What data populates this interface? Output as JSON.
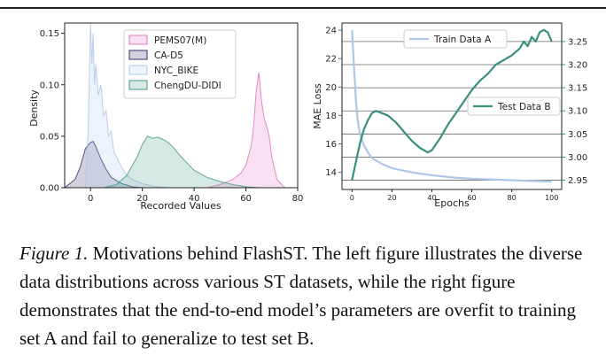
{
  "caption": {
    "label": "Figure 1.",
    "text": "Motivations behind FlashST. The left figure illustrates the diverse data distributions across various ST datasets, while the right figure demonstrates that the end-to-end model’s parameters are overfit to training set A and fail to generalize to test set B."
  },
  "chart_data": [
    {
      "type": "area",
      "title": "",
      "xlabel": "Recorded Values",
      "ylabel": "Density",
      "xlim": [
        -10,
        80
      ],
      "ylim": [
        0,
        0.16
      ],
      "xticks": [
        "0",
        "20",
        "40",
        "60",
        "80"
      ],
      "yticks": [
        "0.00",
        "0.05",
        "0.10",
        "0.15"
      ],
      "legend_position": "top-center",
      "series": [
        {
          "name": "PEMS07(M)",
          "color": "#e377c2",
          "x": [
            45,
            50,
            55,
            58,
            60,
            62,
            63,
            64,
            65,
            66,
            67,
            68,
            69,
            70,
            72,
            75
          ],
          "values": [
            0.0,
            0.003,
            0.008,
            0.014,
            0.022,
            0.04,
            0.06,
            0.095,
            0.112,
            0.085,
            0.068,
            0.06,
            0.05,
            0.03,
            0.008,
            0.0
          ]
        },
        {
          "name": "CA-D5",
          "color": "#34316e",
          "x": [
            -10,
            -6,
            -4,
            -2,
            0,
            1,
            2,
            4,
            6,
            8,
            12,
            16,
            20
          ],
          "values": [
            0.0,
            0.008,
            0.02,
            0.038,
            0.044,
            0.045,
            0.04,
            0.028,
            0.018,
            0.01,
            0.004,
            0.001,
            0.0
          ]
        },
        {
          "name": "NYC_BIKE",
          "color": "#aec7e8",
          "x": [
            -2,
            -1,
            0,
            0.5,
            1,
            1.5,
            2,
            3,
            4,
            5,
            6,
            7,
            8,
            9,
            10,
            12,
            14,
            16,
            20,
            25,
            30
          ],
          "values": [
            0.0,
            0.05,
            0.16,
            0.12,
            0.15,
            0.1,
            0.12,
            0.09,
            0.1,
            0.07,
            0.075,
            0.05,
            0.055,
            0.035,
            0.03,
            0.02,
            0.012,
            0.008,
            0.004,
            0.001,
            0.0
          ]
        },
        {
          "name": "ChengDU-DIDI",
          "color": "#4a9a8a",
          "x": [
            5,
            10,
            14,
            18,
            20,
            22,
            24,
            26,
            28,
            30,
            32,
            35,
            38,
            40,
            45,
            50,
            55,
            60,
            65
          ],
          "values": [
            0.0,
            0.003,
            0.012,
            0.03,
            0.042,
            0.05,
            0.048,
            0.049,
            0.047,
            0.044,
            0.039,
            0.03,
            0.022,
            0.017,
            0.01,
            0.006,
            0.003,
            0.001,
            0.0
          ]
        }
      ]
    },
    {
      "type": "line",
      "title": "",
      "xlabel": "Epochs",
      "ylabel": "MAE Loss",
      "xlim": [
        -5,
        105
      ],
      "xticks": [
        "0",
        "20",
        "40",
        "60",
        "80",
        "100"
      ],
      "ylim": [
        12.8,
        24.5
      ],
      "yticks": [
        "14",
        "16",
        "18",
        "20",
        "22",
        "24"
      ],
      "y2lim": [
        2.93,
        3.29
      ],
      "y2ticks": [
        "2.95",
        "3.00",
        "3.05",
        "3.10",
        "3.15",
        "3.20",
        "3.25"
      ],
      "series": [
        {
          "name": "Train Data A",
          "axis": "left",
          "color": "#aec7e8",
          "x": [
            0,
            1,
            2,
            3,
            4,
            6,
            8,
            10,
            15,
            20,
            30,
            40,
            50,
            60,
            70,
            80,
            90,
            100
          ],
          "values": [
            24.0,
            21.5,
            19.0,
            17.5,
            16.7,
            15.9,
            15.4,
            15.0,
            14.6,
            14.3,
            14.0,
            13.8,
            13.65,
            13.55,
            13.5,
            13.45,
            13.4,
            13.35
          ]
        },
        {
          "name": "Test Data B",
          "axis": "right",
          "color": "#3b8f80",
          "x": [
            0,
            2,
            4,
            6,
            8,
            10,
            12,
            15,
            18,
            22,
            26,
            30,
            34,
            38,
            40,
            44,
            48,
            52,
            56,
            60,
            64,
            68,
            72,
            76,
            80,
            84,
            86,
            88,
            90,
            92,
            94,
            96,
            98,
            100
          ],
          "values": [
            2.95,
            2.99,
            3.03,
            3.06,
            3.08,
            3.095,
            3.1,
            3.095,
            3.09,
            3.075,
            3.055,
            3.035,
            3.02,
            3.01,
            3.015,
            3.04,
            3.07,
            3.095,
            3.12,
            3.145,
            3.165,
            3.18,
            3.2,
            3.21,
            3.22,
            3.235,
            3.25,
            3.24,
            3.26,
            3.25,
            3.27,
            3.275,
            3.27,
            3.25
          ]
        }
      ]
    }
  ]
}
